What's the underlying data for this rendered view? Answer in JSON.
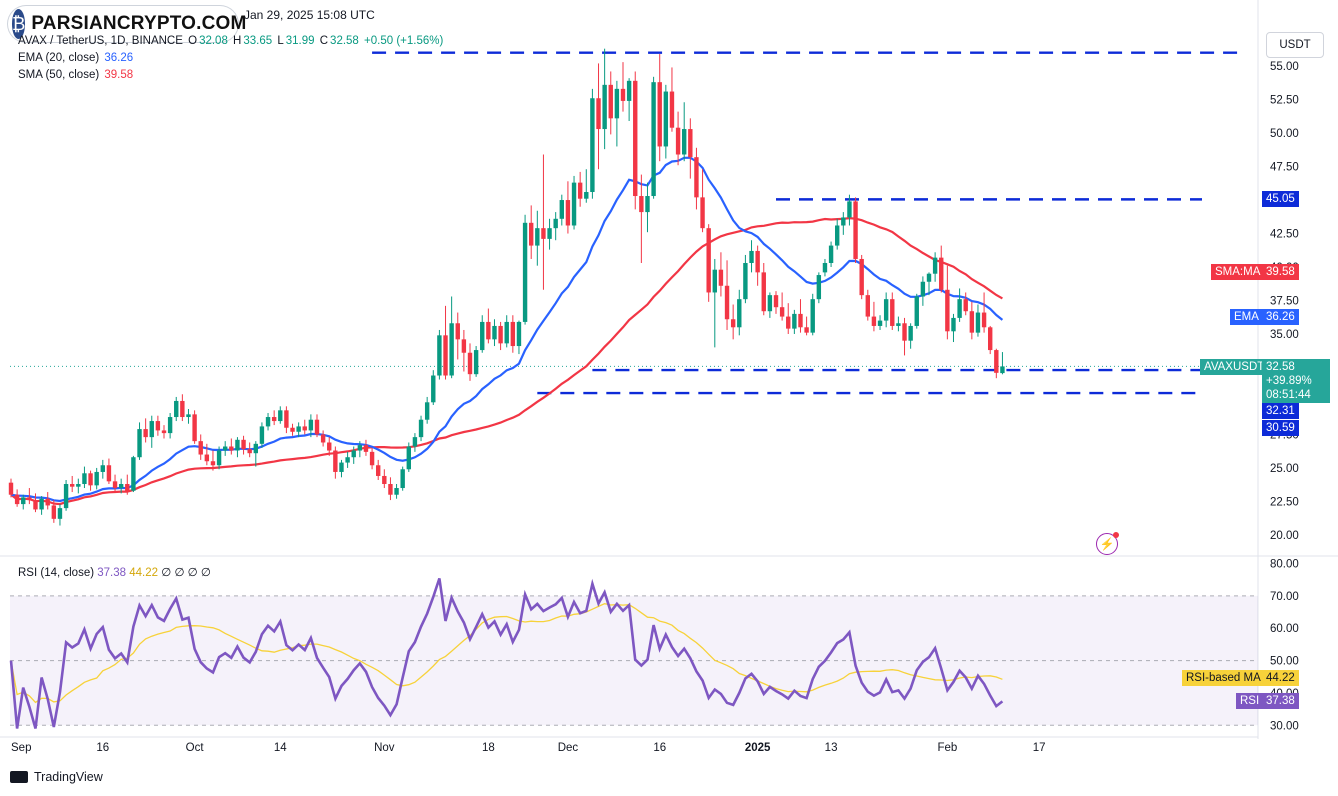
{
  "watermark": "PARSIANCRYPTO.COM",
  "published": "Jan 29, 2025 15:08 UTC",
  "symbol_line": {
    "symbol": "AVAX / TetherUS, 1D, BINANCE",
    "o_label": "O",
    "o": "32.08",
    "h_label": "H",
    "h": "33.65",
    "l_label": "L",
    "l": "31.99",
    "c_label": "C",
    "c": "32.58",
    "change": "+0.50 (+1.56%)"
  },
  "indicators": {
    "ema_label": "EMA (20, close)",
    "ema_value": "36.26",
    "sma_label": "SMA (50, close)",
    "sma_value": "39.58",
    "rsi_label": "RSI (14, close)",
    "rsi_value": "37.38",
    "rsi_ma_value": "44.22",
    "rsi_extra": "∅ ∅ ∅ ∅"
  },
  "currency": "USDT",
  "price_tags": {
    "sma": {
      "label": "SMA:MA",
      "value": "39.58"
    },
    "ema": {
      "label": "EMA",
      "value": "36.26"
    },
    "last": {
      "label": "AVAXUSDT",
      "value": "32.58",
      "change": "+39.89%",
      "countdown": "08:51:44"
    },
    "level_high": "45.05",
    "level_low1": "32.31",
    "level_low2": "30.59",
    "rsi_ma": {
      "label": "RSI-based MA",
      "value": "44.22"
    },
    "rsi": {
      "label": "RSI",
      "value": "37.38"
    }
  },
  "footer": "TradingView",
  "colors": {
    "up": "#089981",
    "down": "#f23645",
    "ema": "#2962ff",
    "sma": "#f23645",
    "rsi": "#7e57c2",
    "rsi_ma": "#f7d23a",
    "level": "#0d2bd8",
    "last_tag": "#26a69a"
  },
  "chart_data": {
    "type": "candlestick",
    "title": "AVAX / TetherUS, 1D, BINANCE",
    "price_axis": {
      "ticks": [
        20.0,
        22.5,
        25.0,
        27.5,
        30.0,
        32.5,
        35.0,
        37.5,
        40.0,
        42.5,
        45.0,
        47.5,
        50.0,
        52.5,
        55.0
      ],
      "tick_labels": [
        "20.00",
        "22.50",
        "25.00",
        "27.50",
        "30.00",
        "32.50",
        "35.00",
        "37.50",
        "40.00",
        "42.50",
        "45.00",
        "47.50",
        "50.00",
        "52.50",
        "55.00"
      ],
      "ylim": [
        18.5,
        56.5
      ]
    },
    "time_axis": {
      "labels": [
        "Sep",
        "16",
        "Oct",
        "14",
        "Nov",
        "18",
        "Dec",
        "16",
        "2025",
        "13",
        "Feb",
        "17"
      ],
      "label_day_index": [
        0,
        15,
        30,
        44,
        61,
        78,
        91,
        106,
        122,
        134,
        153,
        168
      ]
    },
    "start_date": "2024-08-31",
    "candles_ohlc": [
      [
        23.9,
        24.2,
        22.8,
        23.0
      ],
      [
        23.0,
        23.4,
        22.1,
        22.3
      ],
      [
        22.3,
        23.0,
        21.9,
        22.8
      ],
      [
        22.8,
        23.5,
        22.3,
        22.6
      ],
      [
        22.6,
        23.1,
        21.7,
        21.9
      ],
      [
        21.9,
        22.9,
        21.5,
        22.7
      ],
      [
        22.7,
        23.2,
        21.9,
        22.2
      ],
      [
        22.2,
        22.6,
        20.9,
        21.2
      ],
      [
        21.2,
        22.3,
        20.7,
        22.0
      ],
      [
        22.0,
        24.1,
        21.8,
        23.8
      ],
      [
        23.8,
        24.4,
        23.2,
        23.6
      ],
      [
        23.6,
        24.2,
        23.1,
        23.8
      ],
      [
        23.8,
        25.1,
        23.5,
        24.6
      ],
      [
        24.6,
        24.8,
        23.3,
        23.7
      ],
      [
        23.7,
        25.0,
        23.4,
        24.7
      ],
      [
        24.7,
        25.6,
        24.2,
        25.2
      ],
      [
        25.2,
        25.7,
        23.8,
        24.0
      ],
      [
        24.0,
        24.5,
        23.2,
        23.5
      ],
      [
        23.5,
        24.2,
        23.1,
        23.8
      ],
      [
        23.8,
        24.5,
        23.0,
        23.3
      ],
      [
        23.3,
        25.9,
        23.2,
        25.8
      ],
      [
        25.8,
        28.4,
        25.6,
        27.9
      ],
      [
        27.9,
        28.7,
        26.9,
        27.3
      ],
      [
        27.3,
        28.9,
        26.5,
        28.5
      ],
      [
        28.5,
        28.9,
        27.4,
        27.8
      ],
      [
        27.8,
        28.2,
        27.2,
        27.6
      ],
      [
        27.6,
        29.1,
        27.2,
        28.8
      ],
      [
        28.8,
        30.3,
        28.5,
        30.0
      ],
      [
        30.0,
        30.5,
        28.5,
        28.8
      ],
      [
        28.8,
        29.4,
        28.3,
        29.0
      ],
      [
        29.0,
        29.3,
        26.8,
        27.0
      ],
      [
        27.0,
        27.5,
        25.6,
        26.0
      ],
      [
        26.0,
        26.8,
        25.2,
        25.5
      ],
      [
        25.5,
        26.3,
        24.8,
        25.2
      ],
      [
        25.2,
        26.6,
        24.9,
        26.3
      ],
      [
        26.3,
        27.0,
        25.9,
        26.6
      ],
      [
        26.6,
        27.2,
        26.0,
        26.3
      ],
      [
        26.3,
        27.3,
        25.8,
        27.1
      ],
      [
        27.1,
        27.4,
        26.0,
        26.4
      ],
      [
        26.4,
        26.9,
        25.8,
        26.1
      ],
      [
        26.1,
        27.0,
        25.1,
        26.8
      ],
      [
        26.8,
        28.4,
        26.5,
        28.1
      ],
      [
        28.1,
        29.1,
        27.8,
        28.8
      ],
      [
        28.8,
        29.3,
        28.2,
        28.5
      ],
      [
        28.5,
        29.6,
        28.3,
        29.3
      ],
      [
        29.3,
        29.6,
        27.6,
        28.0
      ],
      [
        28.0,
        28.3,
        27.4,
        27.7
      ],
      [
        27.7,
        28.4,
        27.3,
        28.1
      ],
      [
        28.1,
        28.6,
        27.5,
        27.8
      ],
      [
        27.8,
        29.0,
        27.3,
        28.6
      ],
      [
        28.6,
        29.0,
        27.3,
        27.5
      ],
      [
        27.5,
        27.8,
        26.6,
        26.9
      ],
      [
        26.9,
        27.3,
        25.9,
        26.3
      ],
      [
        26.3,
        26.6,
        24.2,
        24.7
      ],
      [
        24.7,
        25.6,
        24.3,
        25.4
      ],
      [
        25.4,
        26.2,
        25.0,
        25.8
      ],
      [
        25.8,
        26.6,
        25.3,
        26.3
      ],
      [
        26.3,
        27.0,
        25.8,
        26.7
      ],
      [
        26.7,
        27.1,
        25.9,
        26.2
      ],
      [
        26.2,
        26.5,
        24.9,
        25.2
      ],
      [
        25.2,
        25.6,
        24.1,
        24.4
      ],
      [
        24.4,
        24.9,
        23.5,
        23.8
      ],
      [
        23.8,
        24.3,
        22.6,
        23.0
      ],
      [
        23.0,
        23.8,
        22.7,
        23.5
      ],
      [
        23.5,
        25.1,
        23.3,
        24.9
      ],
      [
        24.9,
        26.9,
        24.7,
        26.6
      ],
      [
        26.6,
        27.6,
        26.2,
        27.3
      ],
      [
        27.3,
        28.9,
        27.0,
        28.6
      ],
      [
        28.6,
        30.3,
        28.3,
        29.9
      ],
      [
        29.9,
        32.3,
        29.7,
        31.9
      ],
      [
        31.9,
        35.3,
        31.6,
        34.9
      ],
      [
        34.9,
        37.1,
        31.6,
        31.9
      ],
      [
        31.9,
        37.8,
        31.7,
        35.8
      ],
      [
        35.8,
        36.6,
        33.1,
        34.6
      ],
      [
        34.6,
        35.3,
        32.2,
        33.6
      ],
      [
        33.6,
        34.3,
        31.5,
        32.0
      ],
      [
        32.0,
        34.1,
        31.8,
        33.8
      ],
      [
        33.8,
        36.4,
        33.6,
        35.9
      ],
      [
        35.9,
        36.9,
        34.3,
        34.6
      ],
      [
        34.6,
        36.1,
        34.1,
        35.6
      ],
      [
        35.6,
        35.9,
        33.8,
        34.3
      ],
      [
        34.3,
        36.4,
        34.0,
        35.9
      ],
      [
        35.9,
        36.4,
        33.6,
        34.1
      ],
      [
        34.1,
        36.0,
        33.5,
        35.9
      ],
      [
        35.9,
        43.9,
        35.7,
        43.3
      ],
      [
        43.3,
        44.6,
        40.6,
        41.6
      ],
      [
        41.6,
        44.2,
        40.1,
        42.9
      ],
      [
        42.9,
        48.4,
        38.3,
        42.1
      ],
      [
        42.1,
        43.6,
        41.3,
        42.9
      ],
      [
        42.9,
        44.1,
        42.0,
        43.6
      ],
      [
        43.6,
        45.4,
        43.1,
        45.0
      ],
      [
        45.0,
        46.4,
        42.5,
        43.1
      ],
      [
        43.1,
        46.8,
        42.8,
        46.3
      ],
      [
        46.3,
        47.1,
        44.5,
        45.1
      ],
      [
        45.1,
        47.3,
        44.8,
        45.6
      ],
      [
        45.6,
        53.3,
        45.1,
        52.6
      ],
      [
        52.6,
        55.2,
        47.3,
        50.3
      ],
      [
        50.3,
        56.3,
        48.8,
        53.6
      ],
      [
        53.6,
        54.6,
        49.9,
        51.1
      ],
      [
        51.1,
        53.9,
        49.0,
        53.3
      ],
      [
        53.3,
        55.3,
        51.6,
        52.4
      ],
      [
        52.4,
        54.1,
        50.9,
        53.9
      ],
      [
        53.9,
        54.6,
        44.3,
        45.3
      ],
      [
        45.3,
        46.9,
        40.3,
        44.1
      ],
      [
        44.1,
        46.3,
        42.6,
        45.3
      ],
      [
        45.3,
        54.2,
        45.1,
        53.8
      ],
      [
        53.8,
        55.9,
        47.9,
        49.0
      ],
      [
        49.0,
        53.6,
        48.1,
        53.1
      ],
      [
        53.1,
        54.9,
        50.1,
        50.4
      ],
      [
        50.4,
        51.6,
        47.6,
        48.4
      ],
      [
        48.4,
        52.3,
        47.9,
        50.3
      ],
      [
        50.3,
        51.1,
        46.6,
        48.2
      ],
      [
        48.2,
        48.9,
        44.3,
        45.2
      ],
      [
        45.2,
        47.3,
        42.6,
        42.9
      ],
      [
        42.9,
        43.2,
        37.4,
        38.1
      ],
      [
        38.1,
        40.6,
        34.0,
        39.8
      ],
      [
        39.8,
        41.1,
        37.8,
        38.6
      ],
      [
        38.6,
        40.5,
        35.3,
        36.1
      ],
      [
        36.1,
        37.2,
        34.6,
        35.5
      ],
      [
        35.5,
        38.3,
        34.9,
        37.6
      ],
      [
        37.6,
        40.9,
        37.3,
        40.3
      ],
      [
        40.3,
        42.0,
        39.6,
        41.2
      ],
      [
        41.2,
        41.6,
        38.6,
        39.6
      ],
      [
        39.6,
        40.3,
        36.4,
        36.7
      ],
      [
        36.7,
        38.1,
        36.2,
        37.9
      ],
      [
        37.9,
        38.2,
        36.5,
        37.0
      ],
      [
        37.0,
        38.1,
        36.0,
        36.3
      ],
      [
        36.3,
        37.3,
        35.0,
        35.4
      ],
      [
        35.4,
        36.8,
        35.0,
        36.5
      ],
      [
        36.5,
        37.6,
        35.1,
        35.5
      ],
      [
        35.5,
        36.3,
        34.9,
        35.1
      ],
      [
        35.1,
        38.0,
        34.9,
        37.6
      ],
      [
        37.6,
        39.6,
        37.3,
        39.4
      ],
      [
        39.6,
        40.6,
        39.3,
        40.3
      ],
      [
        40.3,
        41.9,
        40.0,
        41.6
      ],
      [
        41.6,
        43.6,
        41.3,
        43.1
      ],
      [
        43.1,
        44.1,
        42.4,
        43.7
      ],
      [
        43.7,
        45.4,
        43.1,
        44.9
      ],
      [
        44.9,
        45.2,
        40.3,
        40.6
      ],
      [
        40.6,
        40.9,
        37.6,
        37.9
      ],
      [
        37.9,
        38.3,
        36.0,
        36.3
      ],
      [
        36.3,
        37.4,
        35.2,
        35.6
      ],
      [
        35.6,
        36.4,
        35.3,
        36.0
      ],
      [
        36.0,
        38.1,
        35.5,
        37.6
      ],
      [
        37.6,
        38.1,
        35.3,
        35.6
      ],
      [
        35.6,
        36.3,
        35.2,
        35.8
      ],
      [
        35.8,
        36.2,
        33.4,
        34.5
      ],
      [
        34.5,
        35.8,
        33.9,
        35.6
      ],
      [
        35.6,
        38.0,
        35.4,
        37.8
      ],
      [
        37.8,
        39.3,
        37.1,
        38.9
      ],
      [
        38.9,
        39.6,
        37.9,
        39.5
      ],
      [
        39.5,
        41.1,
        38.9,
        40.7
      ],
      [
        40.7,
        41.6,
        38.1,
        38.3
      ],
      [
        38.3,
        40.1,
        34.6,
        35.2
      ],
      [
        35.2,
        36.5,
        34.4,
        36.2
      ],
      [
        36.2,
        38.4,
        35.9,
        37.6
      ],
      [
        37.6,
        38.1,
        36.4,
        36.7
      ],
      [
        36.7,
        37.4,
        34.6,
        35.1
      ],
      [
        35.1,
        37.2,
        34.8,
        36.6
      ],
      [
        36.6,
        38.1,
        35.1,
        35.5
      ],
      [
        35.5,
        35.6,
        33.5,
        33.8
      ],
      [
        33.8,
        33.9,
        31.7,
        32.1
      ],
      [
        32.08,
        33.65,
        31.99,
        32.58
      ]
    ],
    "series": [
      {
        "name": "EMA (20, close)",
        "last": 36.26
      },
      {
        "name": "SMA (50, close)",
        "last": 39.58
      }
    ],
    "horizontal_levels": [
      56.0,
      45.05,
      32.31,
      30.59
    ],
    "rsi": {
      "name": "RSI (14, close)",
      "ticks": [
        30,
        40,
        50,
        60,
        70,
        80
      ],
      "tick_labels": [
        "30.00",
        "40.00",
        "50.00",
        "60.00",
        "70.00",
        "80.00"
      ],
      "ylim": [
        27,
        82
      ],
      "band": [
        30,
        70
      ],
      "midline": 50,
      "ma_name": "RSI-based MA",
      "last": 37.38,
      "ma_last": 44.22
    }
  }
}
